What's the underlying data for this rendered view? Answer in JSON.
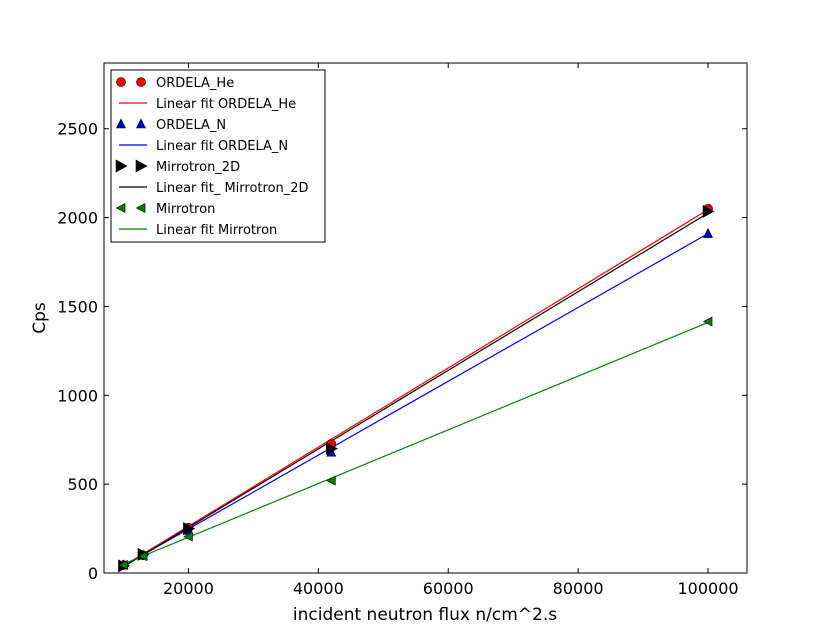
{
  "chart_data": {
    "type": "scatter",
    "xlabel": "incident neutron flux n/cm^2.s",
    "ylabel": "Cps",
    "xlim": [
      7000,
      106000
    ],
    "ylim": [
      0,
      2500
    ],
    "x_ticks": [
      20000,
      40000,
      60000,
      80000,
      100000
    ],
    "x_tick_labels": [
      "20000",
      "40000",
      "60000",
      "80000",
      "100000"
    ],
    "y_ticks": [
      0,
      500,
      1000,
      1500,
      2000,
      2500
    ],
    "y_tick_labels": [
      "0",
      "500",
      "1000",
      "1500",
      "2000",
      "2500"
    ],
    "grid": false,
    "legend_position": "upper-left",
    "series": [
      {
        "name": "ORDELA_He",
        "kind": "points",
        "marker": "circle",
        "color": "#ff0000",
        "x": [
          10000,
          13000,
          20000,
          42000,
          100000
        ],
        "y": [
          45,
          100,
          255,
          725,
          2050
        ]
      },
      {
        "name": "Linear fit ORDELA_He",
        "kind": "line",
        "color": "#ff0000",
        "x": [
          10000,
          100000
        ],
        "y": [
          40,
          2045
        ]
      },
      {
        "name": "ORDELA_N",
        "kind": "points",
        "marker": "triangle-up",
        "color": "#0000cc",
        "x": [
          10000,
          13000,
          20000,
          42000,
          100000
        ],
        "y": [
          45,
          100,
          240,
          680,
          1910
        ]
      },
      {
        "name": "Linear fit ORDELA_N",
        "kind": "line",
        "color": "#0000ff",
        "x": [
          10000,
          100000
        ],
        "y": [
          40,
          1910
        ]
      },
      {
        "name": "Mirrotron_2D",
        "kind": "points",
        "marker": "triangle-right",
        "color": "#000000",
        "x": [
          10000,
          13000,
          20000,
          42000,
          100000
        ],
        "y": [
          40,
          105,
          250,
          700,
          2035
        ]
      },
      {
        "name": "Linear fit_ Mirrotron_2D",
        "kind": "line",
        "color": "#000000",
        "x": [
          10000,
          100000
        ],
        "y": [
          35,
          2025
        ]
      },
      {
        "name": "Mirrotron",
        "kind": "points",
        "marker": "triangle-left",
        "color": "#007f00",
        "x": [
          10000,
          13000,
          20000,
          42000,
          100000
        ],
        "y": [
          45,
          95,
          205,
          520,
          1415
        ]
      },
      {
        "name": "Linear fit Mirrotron",
        "kind": "line",
        "color": "#007f00",
        "x": [
          10000,
          100000
        ],
        "y": [
          50,
          1410
        ]
      }
    ]
  }
}
